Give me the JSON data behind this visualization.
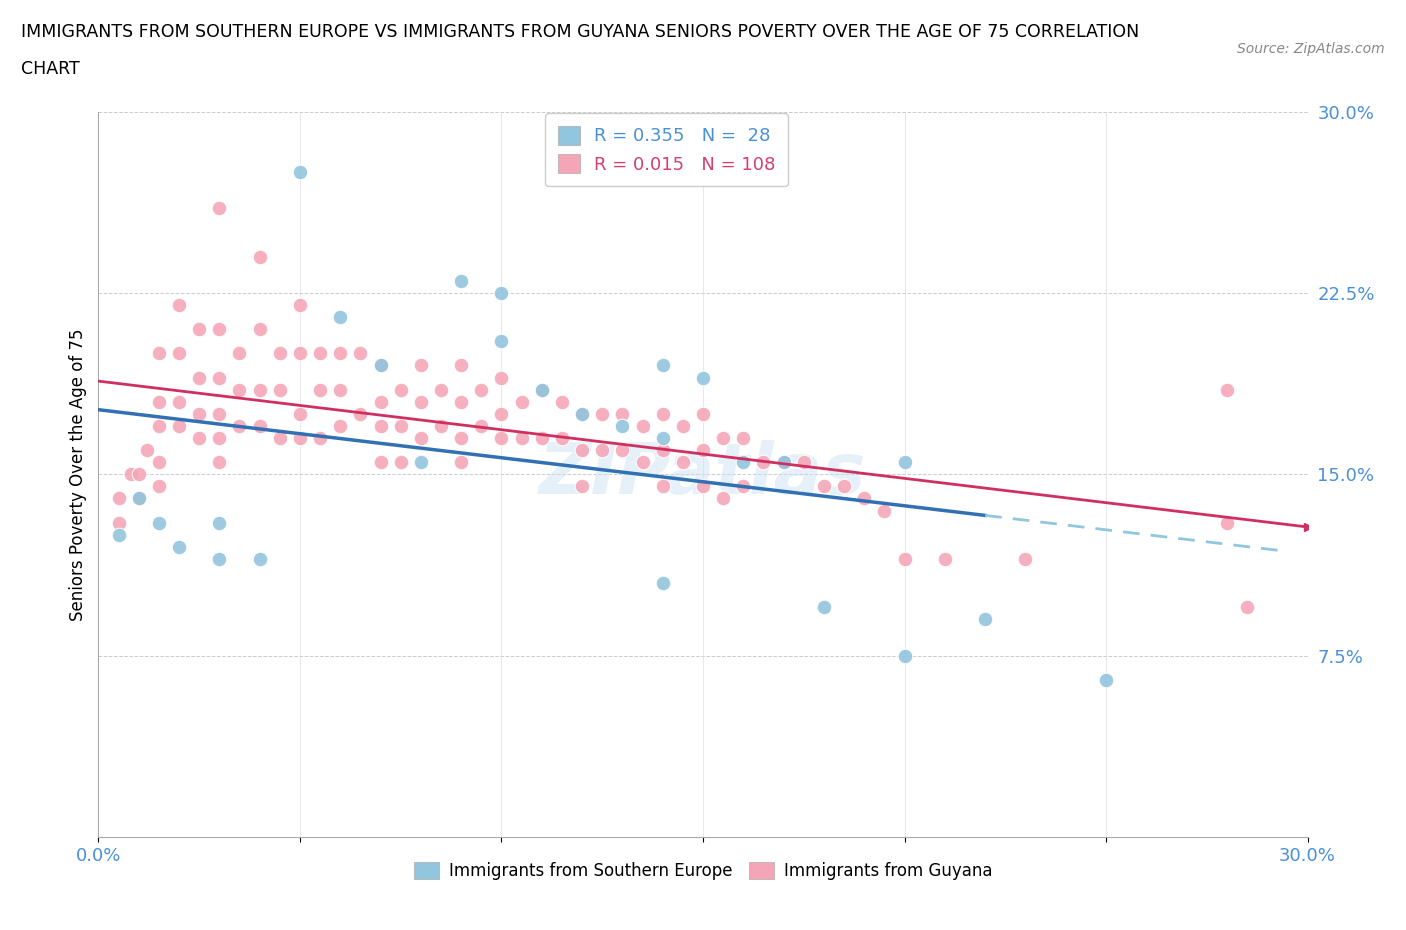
{
  "title_line1": "IMMIGRANTS FROM SOUTHERN EUROPE VS IMMIGRANTS FROM GUYANA SENIORS POVERTY OVER THE AGE OF 75 CORRELATION",
  "title_line2": "CHART",
  "source_text": "Source: ZipAtlas.com",
  "ylabel": "Seniors Poverty Over the Age of 75",
  "xlim": [
    0.0,
    0.3
  ],
  "ylim": [
    0.0,
    0.3
  ],
  "blue_R": 0.355,
  "blue_N": 28,
  "pink_R": 0.015,
  "pink_N": 108,
  "blue_color": "#92c5de",
  "pink_color": "#f4a6b8",
  "blue_line_color": "#3070b3",
  "pink_line_color": "#d03060",
  "dashed_line_color": "#92c5de",
  "watermark": "ZIPatlas",
  "legend_label_blue": "Immigrants from Southern Europe",
  "legend_label_pink": "Immigrants from Guyana",
  "tick_color": "#4a90d9",
  "blue_scatter_x": [
    0.005,
    0.01,
    0.015,
    0.02,
    0.03,
    0.03,
    0.04,
    0.05,
    0.06,
    0.07,
    0.08,
    0.09,
    0.1,
    0.1,
    0.11,
    0.12,
    0.13,
    0.14,
    0.14,
    0.15,
    0.16,
    0.17,
    0.18,
    0.2,
    0.22,
    0.25,
    0.14,
    0.2
  ],
  "blue_scatter_y": [
    0.125,
    0.14,
    0.13,
    0.12,
    0.13,
    0.115,
    0.115,
    0.275,
    0.215,
    0.195,
    0.155,
    0.23,
    0.225,
    0.205,
    0.185,
    0.175,
    0.17,
    0.195,
    0.165,
    0.19,
    0.155,
    0.155,
    0.095,
    0.155,
    0.09,
    0.065,
    0.105,
    0.075
  ],
  "pink_scatter_x": [
    0.005,
    0.005,
    0.008,
    0.01,
    0.01,
    0.012,
    0.015,
    0.015,
    0.015,
    0.015,
    0.015,
    0.02,
    0.02,
    0.02,
    0.02,
    0.025,
    0.025,
    0.025,
    0.025,
    0.03,
    0.03,
    0.03,
    0.03,
    0.03,
    0.03,
    0.035,
    0.035,
    0.035,
    0.04,
    0.04,
    0.04,
    0.04,
    0.045,
    0.045,
    0.045,
    0.05,
    0.05,
    0.05,
    0.05,
    0.055,
    0.055,
    0.055,
    0.06,
    0.06,
    0.06,
    0.065,
    0.065,
    0.07,
    0.07,
    0.07,
    0.07,
    0.075,
    0.075,
    0.075,
    0.08,
    0.08,
    0.08,
    0.085,
    0.085,
    0.09,
    0.09,
    0.09,
    0.09,
    0.095,
    0.095,
    0.1,
    0.1,
    0.1,
    0.105,
    0.105,
    0.11,
    0.11,
    0.115,
    0.115,
    0.12,
    0.12,
    0.12,
    0.125,
    0.125,
    0.13,
    0.13,
    0.135,
    0.135,
    0.14,
    0.14,
    0.14,
    0.145,
    0.145,
    0.15,
    0.15,
    0.15,
    0.155,
    0.155,
    0.16,
    0.16,
    0.165,
    0.17,
    0.175,
    0.18,
    0.185,
    0.19,
    0.195,
    0.2,
    0.21,
    0.23,
    0.28,
    0.28,
    0.285
  ],
  "pink_scatter_y": [
    0.14,
    0.13,
    0.15,
    0.15,
    0.14,
    0.16,
    0.2,
    0.18,
    0.17,
    0.155,
    0.145,
    0.22,
    0.2,
    0.18,
    0.17,
    0.21,
    0.19,
    0.175,
    0.165,
    0.26,
    0.21,
    0.19,
    0.175,
    0.165,
    0.155,
    0.2,
    0.185,
    0.17,
    0.24,
    0.21,
    0.185,
    0.17,
    0.2,
    0.185,
    0.165,
    0.22,
    0.2,
    0.175,
    0.165,
    0.2,
    0.185,
    0.165,
    0.2,
    0.185,
    0.17,
    0.2,
    0.175,
    0.195,
    0.18,
    0.17,
    0.155,
    0.185,
    0.17,
    0.155,
    0.195,
    0.18,
    0.165,
    0.185,
    0.17,
    0.195,
    0.18,
    0.165,
    0.155,
    0.185,
    0.17,
    0.19,
    0.175,
    0.165,
    0.18,
    0.165,
    0.185,
    0.165,
    0.18,
    0.165,
    0.175,
    0.16,
    0.145,
    0.175,
    0.16,
    0.175,
    0.16,
    0.17,
    0.155,
    0.175,
    0.16,
    0.145,
    0.17,
    0.155,
    0.175,
    0.16,
    0.145,
    0.165,
    0.14,
    0.165,
    0.145,
    0.155,
    0.155,
    0.155,
    0.145,
    0.145,
    0.14,
    0.135,
    0.115,
    0.115,
    0.115,
    0.185,
    0.13,
    0.095
  ]
}
